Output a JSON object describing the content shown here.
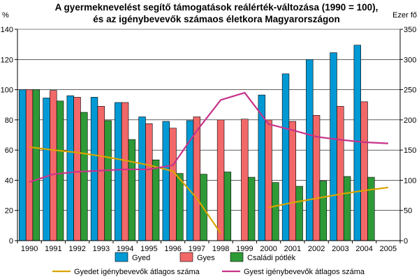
{
  "chart_data": {
    "type": "bar",
    "title_line1": "A gyermeknevelést segítő támogatások reálérték-változása (1990 = 100),",
    "title_line2": "és az igénybevevők számaos életkora Magyarországon",
    "left_unit": "%",
    "right_unit": "Ezer fő",
    "ylim_left": [
      0,
      140
    ],
    "ylim_right": [
      0,
      350
    ],
    "left_ticks": [
      "0",
      "20",
      "40",
      "60",
      "80",
      "100",
      "120",
      "140"
    ],
    "right_ticks": [
      "0",
      "50",
      "100",
      "150",
      "200",
      "250",
      "300",
      "350"
    ],
    "grid": true,
    "legend_position": "bottom",
    "categories": [
      "1990",
      "1991",
      "1992",
      "1993",
      "1994",
      "1995",
      "1996",
      "1997",
      "1998",
      "1999",
      "2000",
      "2001",
      "2002",
      "2003",
      "2004",
      "2005"
    ],
    "series": [
      {
        "name": "Gyed",
        "axis": "left",
        "color": "#0099d4",
        "values": [
          100,
          94.5,
          96,
          95,
          91.5,
          82,
          79,
          79.5,
          null,
          null,
          96.5,
          110.5,
          120,
          124.5,
          129.5,
          null
        ]
      },
      {
        "name": "Gyes",
        "axis": "left",
        "color": "#f26868",
        "values": [
          100,
          99.5,
          95,
          89,
          91.5,
          77.5,
          74.5,
          82,
          80,
          80.5,
          80,
          79,
          83,
          89,
          92,
          null
        ]
      },
      {
        "name": "Családi pótlék",
        "axis": "left",
        "color": "#2e9a37",
        "values": [
          100,
          92.5,
          85,
          79.5,
          67,
          53.5,
          44.5,
          44,
          45.5,
          42,
          38.5,
          36,
          39.5,
          42.5,
          42,
          null
        ]
      }
    ],
    "lines": [
      {
        "name": "Gyedet igénybevevők átlagos száma",
        "axis": "right",
        "color": "#d9a400",
        "segments": [
          {
            "x": [
              1990,
              1991,
              1992,
              1993,
              1994,
              1995,
              1996,
              1997,
              1998
            ],
            "y": [
              155,
              150,
              146,
              140,
              133,
              125,
              115,
              70,
              12
            ]
          },
          {
            "x": [
              2000,
              2001,
              2002,
              2003,
              2004,
              2005
            ],
            "y": [
              55,
              63,
              70,
              77,
              83,
              88
            ]
          }
        ]
      },
      {
        "name": "Gyest igénybevevők átlagos száma",
        "axis": "right",
        "color": "#c8338a",
        "segments": [
          {
            "x": [
              1990,
              1991,
              1992,
              1993,
              1994,
              1995,
              1996,
              1997,
              1998,
              1999,
              2000,
              2001,
              2002,
              2003,
              2004,
              2005
            ],
            "y": [
              97,
              110,
              114,
              116,
              118,
              118,
              125,
              182,
              233,
              245,
              193,
              183,
              172,
              167,
              163,
              161
            ]
          }
        ]
      }
    ]
  }
}
